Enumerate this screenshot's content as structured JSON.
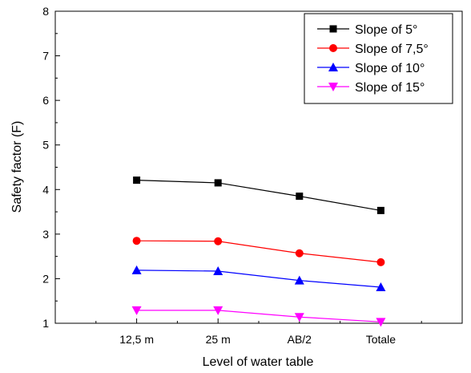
{
  "chart_data": {
    "type": "line",
    "title": "",
    "xlabel": "Level of water table",
    "ylabel": "Safety factor (F)",
    "categories": [
      "12,5 m",
      "25 m",
      "AB/2",
      "Totale"
    ],
    "ylim": [
      1,
      8
    ],
    "yticks": [
      1,
      2,
      3,
      4,
      5,
      6,
      7,
      8
    ],
    "grid": false,
    "legend_position": "top-right",
    "series": [
      {
        "name": "Slope of  5°",
        "values": [
          4.21,
          4.15,
          3.85,
          3.53
        ],
        "color": "#000000",
        "marker": "square"
      },
      {
        "name": "Slope of  7,5°",
        "values": [
          2.85,
          2.84,
          2.57,
          2.37
        ],
        "color": "#ff0000",
        "marker": "circle"
      },
      {
        "name": "Slope of  10°",
        "values": [
          2.19,
          2.17,
          1.96,
          1.81
        ],
        "color": "#0000ff",
        "marker": "triangle-up"
      },
      {
        "name": "Slope of  15°",
        "values": [
          1.29,
          1.29,
          1.14,
          1.03
        ],
        "color": "#ff00ff",
        "marker": "triangle-down"
      }
    ]
  }
}
